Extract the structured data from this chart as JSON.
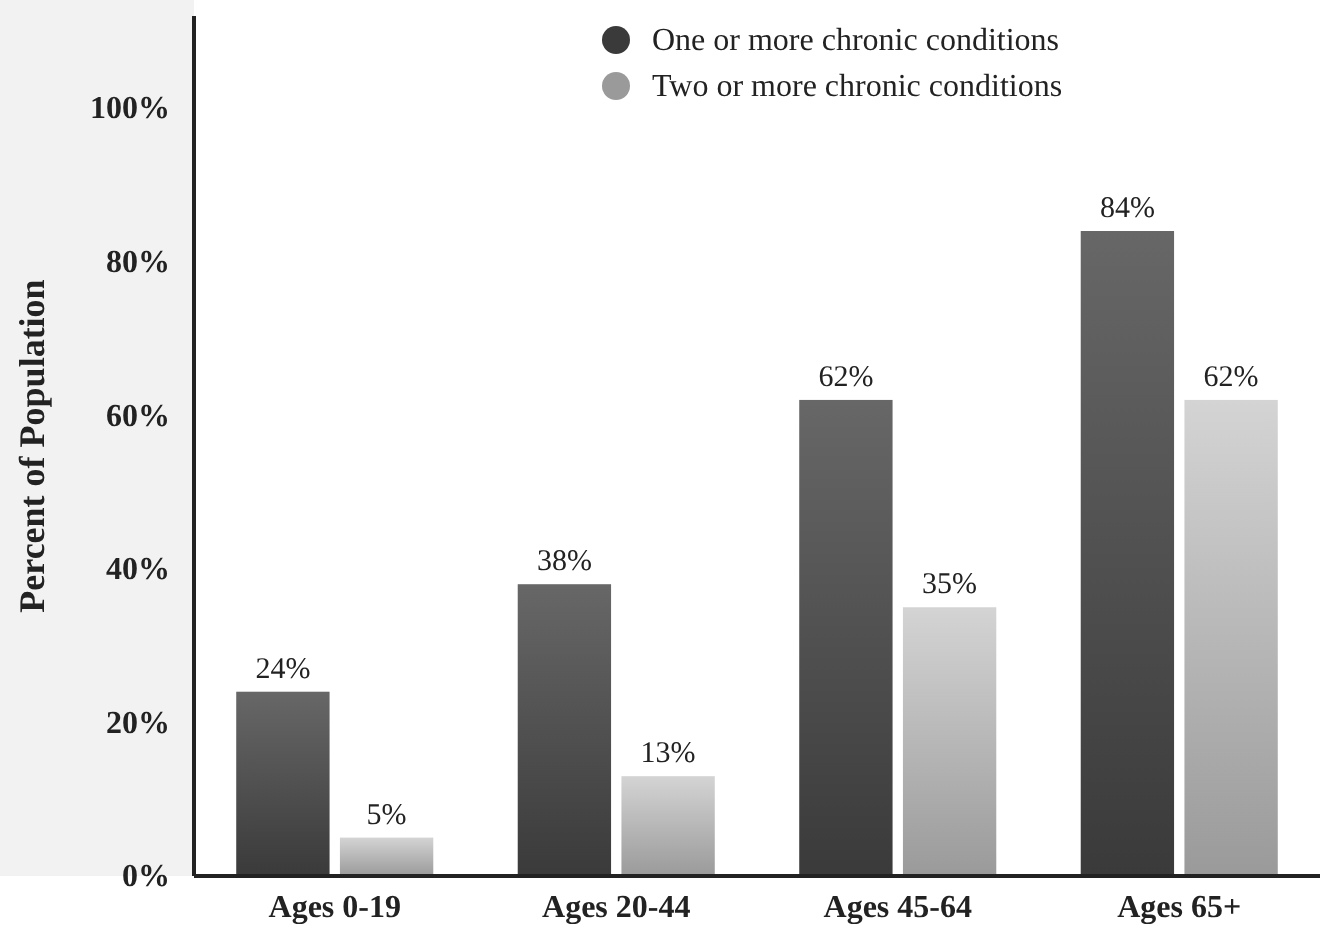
{
  "chart_data": {
    "type": "bar",
    "ylabel": "Percent of Population",
    "categories": [
      "Ages 0-19",
      "Ages 20-44",
      "Ages 45-64",
      "Ages 65+"
    ],
    "series": [
      {
        "name": "One or more chronic conditions",
        "color": "#3a3a3a",
        "values": [
          24,
          38,
          62,
          84
        ]
      },
      {
        "name": "Two or more chronic conditions",
        "color": "#9a9a9a",
        "values": [
          5,
          13,
          35,
          62
        ]
      }
    ],
    "ylim": [
      0,
      112
    ],
    "yticks": [
      {
        "value": 0,
        "label": "0%"
      },
      {
        "value": 20,
        "label": "20%"
      },
      {
        "value": 40,
        "label": "40%"
      },
      {
        "value": 60,
        "label": "60%"
      },
      {
        "value": 80,
        "label": "80%"
      },
      {
        "value": 100,
        "label": "100%"
      }
    ],
    "value_labels": [
      [
        "24%",
        "38%",
        "62%",
        "84%"
      ],
      [
        "5%",
        "13%",
        "35%",
        "62%"
      ]
    ],
    "legend": "top right",
    "grid": false
  }
}
